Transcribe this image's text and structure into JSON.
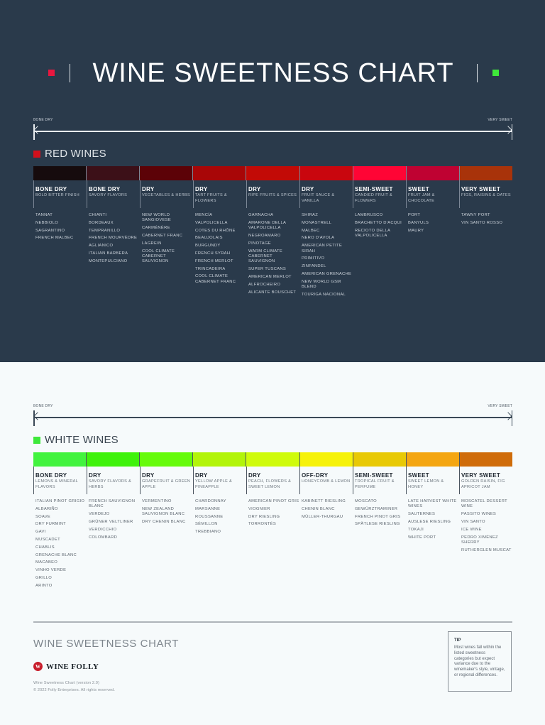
{
  "header": {
    "title": "WINE SWEETNESS CHART",
    "left_marker_color": "#e8173f",
    "right_marker_color": "#3fe83a"
  },
  "axis": {
    "left_label": "BONE DRY",
    "right_label": "VERY SWEET"
  },
  "red": {
    "section_label": "RED WINES",
    "swatch_color": "#d2101c",
    "columns": [
      {
        "level": "BONE DRY",
        "desc": "BOLD BITTER FINISH",
        "color": "#160b0d",
        "wines": [
          "TANNAT",
          "NEBBIOLO",
          "SAGRANTINO",
          "FRENCH MALBEC"
        ]
      },
      {
        "level": "BONE DRY",
        "desc": "SAVORY FLAVORS",
        "color": "#3c1018",
        "wines": [
          "CHIANTI",
          "BORDEAUX",
          "TEMPRANILLO",
          "FRENCH MOURVÈDRE",
          "AGLIANICO",
          "ITALIAN BARBERA",
          "MONTEPULCIANO"
        ]
      },
      {
        "level": "DRY",
        "desc": "VEGETABLES & HERBS",
        "color": "#5c0207",
        "wines": [
          "NEW WORLD SANGIOVESE",
          "CARMÉNÈRE",
          "CABERNET FRANC",
          "LAGREIN",
          "COOL CLIMATE CABERNET SAUVIGNON"
        ]
      },
      {
        "level": "DRY",
        "desc": "TART FRUITS & FLOWERS",
        "color": "#a80607",
        "wines": [
          "MENCÍA",
          "VALPOLICELLA",
          "COTES DU RHÔNE",
          "BEAUJOLAIS",
          "BURGUNDY",
          "FRENCH SYRAH",
          "FRENCH MERLOT",
          "TRINCADEIRA",
          "COOL CLIMATE CABERNET FRANC"
        ]
      },
      {
        "level": "DRY",
        "desc": "RIPE FRUITS & SPICES",
        "color": "#c20a06",
        "wines": [
          "GARNACHA",
          "AMARONE DELLA VALPOLICELLA",
          "NEGROAMARO",
          "PINOTAGE",
          "WARM CLIMATE CABERNET SAUVIGNON",
          "SUPER TUSCANS",
          "AMERICAN MERLOT",
          "ALFROCHEIRO",
          "ALICANTE BOUSCHET"
        ]
      },
      {
        "level": "DRY",
        "desc": "FRUIT SAUCE & VANILLA",
        "color": "#c9060e",
        "wines": [
          "SHIRAZ",
          "MONASTRELL",
          "MALBEC",
          "NERO D'AVOLA",
          "AMERICAN PETITE SIRAH",
          "PRIMITIVO",
          "ZINFANDEL",
          "AMERICAN GRENACHE",
          "NEW WORLD GSM BLEND",
          "TOURIGA NACIONAL"
        ]
      },
      {
        "level": "SEMI-SWEET",
        "desc": "CANDIED FRUIT & FLOWERS",
        "color": "#ff0535",
        "wines": [
          "LAMBRUSCO",
          "BRACHETTO D'ACQUI",
          "RECIOTO DELLA VALPOLICELLA"
        ]
      },
      {
        "level": "SWEET",
        "desc": "FRUIT JAM & CHOCOLATE",
        "color": "#bf0232",
        "wines": [
          "PORT",
          "BANYULS",
          "MAURY"
        ]
      },
      {
        "level": "VERY SWEET",
        "desc": "FIGS, RAISINS & DATES",
        "color": "#a8330a",
        "wines": [
          "TAWNY PORT",
          "VIN SANTO ROSSO"
        ]
      }
    ]
  },
  "white": {
    "section_label": "WHITE WINES",
    "swatch_color": "#3ee83b",
    "columns": [
      {
        "level": "BONE DRY",
        "desc": "LEMONS & MINERAL FLAVORS",
        "color": "#42f33e",
        "wines": [
          "ITALIAN PINOT GRIGIO",
          "ALBARIÑO",
          "SOAVE",
          "DRY FURMINT",
          "GAVI",
          "MUSCADET",
          "CHABLIS",
          "GRENACHE BLANC",
          "MACABEO",
          "VINHO VERDE",
          "GRILLO",
          "ARINTO"
        ]
      },
      {
        "level": "DRY",
        "desc": "SAVORY FLAVORS & HERBS",
        "color": "#3ff20c",
        "wines": [
          "FRENCH SAUVIGNON BLANC",
          "VERDEJO",
          "GRÜNER VELTLINER",
          "VERDICCHIO",
          "COLOMBARD"
        ]
      },
      {
        "level": "DRY",
        "desc": "GRAPEFRUIT & GREEN APPLE",
        "color": "#66fb0b",
        "wines": [
          "VERMENTINO",
          "NEW ZEALAND SAUVIGNON BLANC",
          "DRY CHENIN BLANC"
        ]
      },
      {
        "level": "DRY",
        "desc": "YELLOW APPLE & PINEAPPLE",
        "color": "#b2f40a",
        "wines": [
          "CHARDONNAY",
          "MARSANNE",
          "ROUSSANNE",
          "SÉMILLON",
          "TREBBIANO"
        ]
      },
      {
        "level": "DRY",
        "desc": "PEACH, FLOWERS & SWEET LEMON",
        "color": "#cffb0c",
        "wines": [
          "AMERICAN PINOT GRIS",
          "VIOGNIER",
          "DRY RIESLING",
          "TORRONTÉS"
        ]
      },
      {
        "level": "OFF-DRY",
        "desc": "HONEYCOMB & LEMON",
        "color": "#f6f20a",
        "wines": [
          "KABINETT RIESLING",
          "CHENIN BLANC",
          "MÜLLER-THURGAU"
        ]
      },
      {
        "level": "SEMI-SWEET",
        "desc": "TROPICAL FRUIT & PERFUME",
        "color": "#e8c905",
        "wines": [
          "MOSCATO",
          "GEWÜRZTRAMINER",
          "FRENCH PINOT GRIS",
          "SPÄTLESE RIESLING"
        ]
      },
      {
        "level": "SWEET",
        "desc": "SWEET LEMON & HONEY",
        "color": "#f4a612",
        "wines": [
          "LATE HARVEST WHITE WINES",
          "SAUTERNES",
          "AUSLESE RIESLING",
          "TOKAJI",
          "WHITE PORT"
        ]
      },
      {
        "level": "VERY SWEET",
        "desc": "GOLDEN RAISIN, FIG APRICOT JAM",
        "color": "#cf6c0a",
        "wines": [
          "MOSCATEL DESSERT WINE",
          "PASSITO WINES",
          "VIN SANTO",
          "ICE WINE",
          "PEDRO XIMÉNEZ SHERRY",
          "RUTHERGLEN MUSCAT"
        ]
      }
    ]
  },
  "footer": {
    "title": "WINE SWEETNESS CHART",
    "brand": "WINE FOLLY",
    "brand_logo": "W",
    "version": "Wine Sweetness Chart (version 2.0)",
    "copyright": "© 2022 Folly Enterprises. All rights reserved.",
    "tip_heading": "TIP",
    "tip_body": "Most wines fall within the listed sweetness categories but expect variance due to the winemaker's style, vintage, or regional differences."
  },
  "chart_data": {
    "type": "table",
    "title": "WINE SWEETNESS CHART",
    "xlabel": "Sweetness (BONE DRY → VERY SWEET)",
    "categories": [
      "BONE DRY",
      "BONE DRY",
      "DRY",
      "DRY",
      "DRY",
      "DRY",
      "SEMI-SWEET",
      "SWEET",
      "VERY SWEET"
    ],
    "series": [
      {
        "name": "RED WINES",
        "levels": [
          "BONE DRY",
          "BONE DRY",
          "DRY",
          "DRY",
          "DRY",
          "DRY",
          "SEMI-SWEET",
          "SWEET",
          "VERY SWEET"
        ],
        "wine_counts": [
          4,
          7,
          5,
          9,
          9,
          10,
          3,
          3,
          2
        ]
      },
      {
        "name": "WHITE WINES",
        "levels": [
          "BONE DRY",
          "DRY",
          "DRY",
          "DRY",
          "DRY",
          "OFF-DRY",
          "SEMI-SWEET",
          "SWEET",
          "VERY SWEET"
        ],
        "wine_counts": [
          12,
          5,
          3,
          5,
          4,
          3,
          4,
          5,
          6
        ]
      }
    ],
    "legend": [
      "RED WINES",
      "WHITE WINES"
    ],
    "grid": false
  }
}
